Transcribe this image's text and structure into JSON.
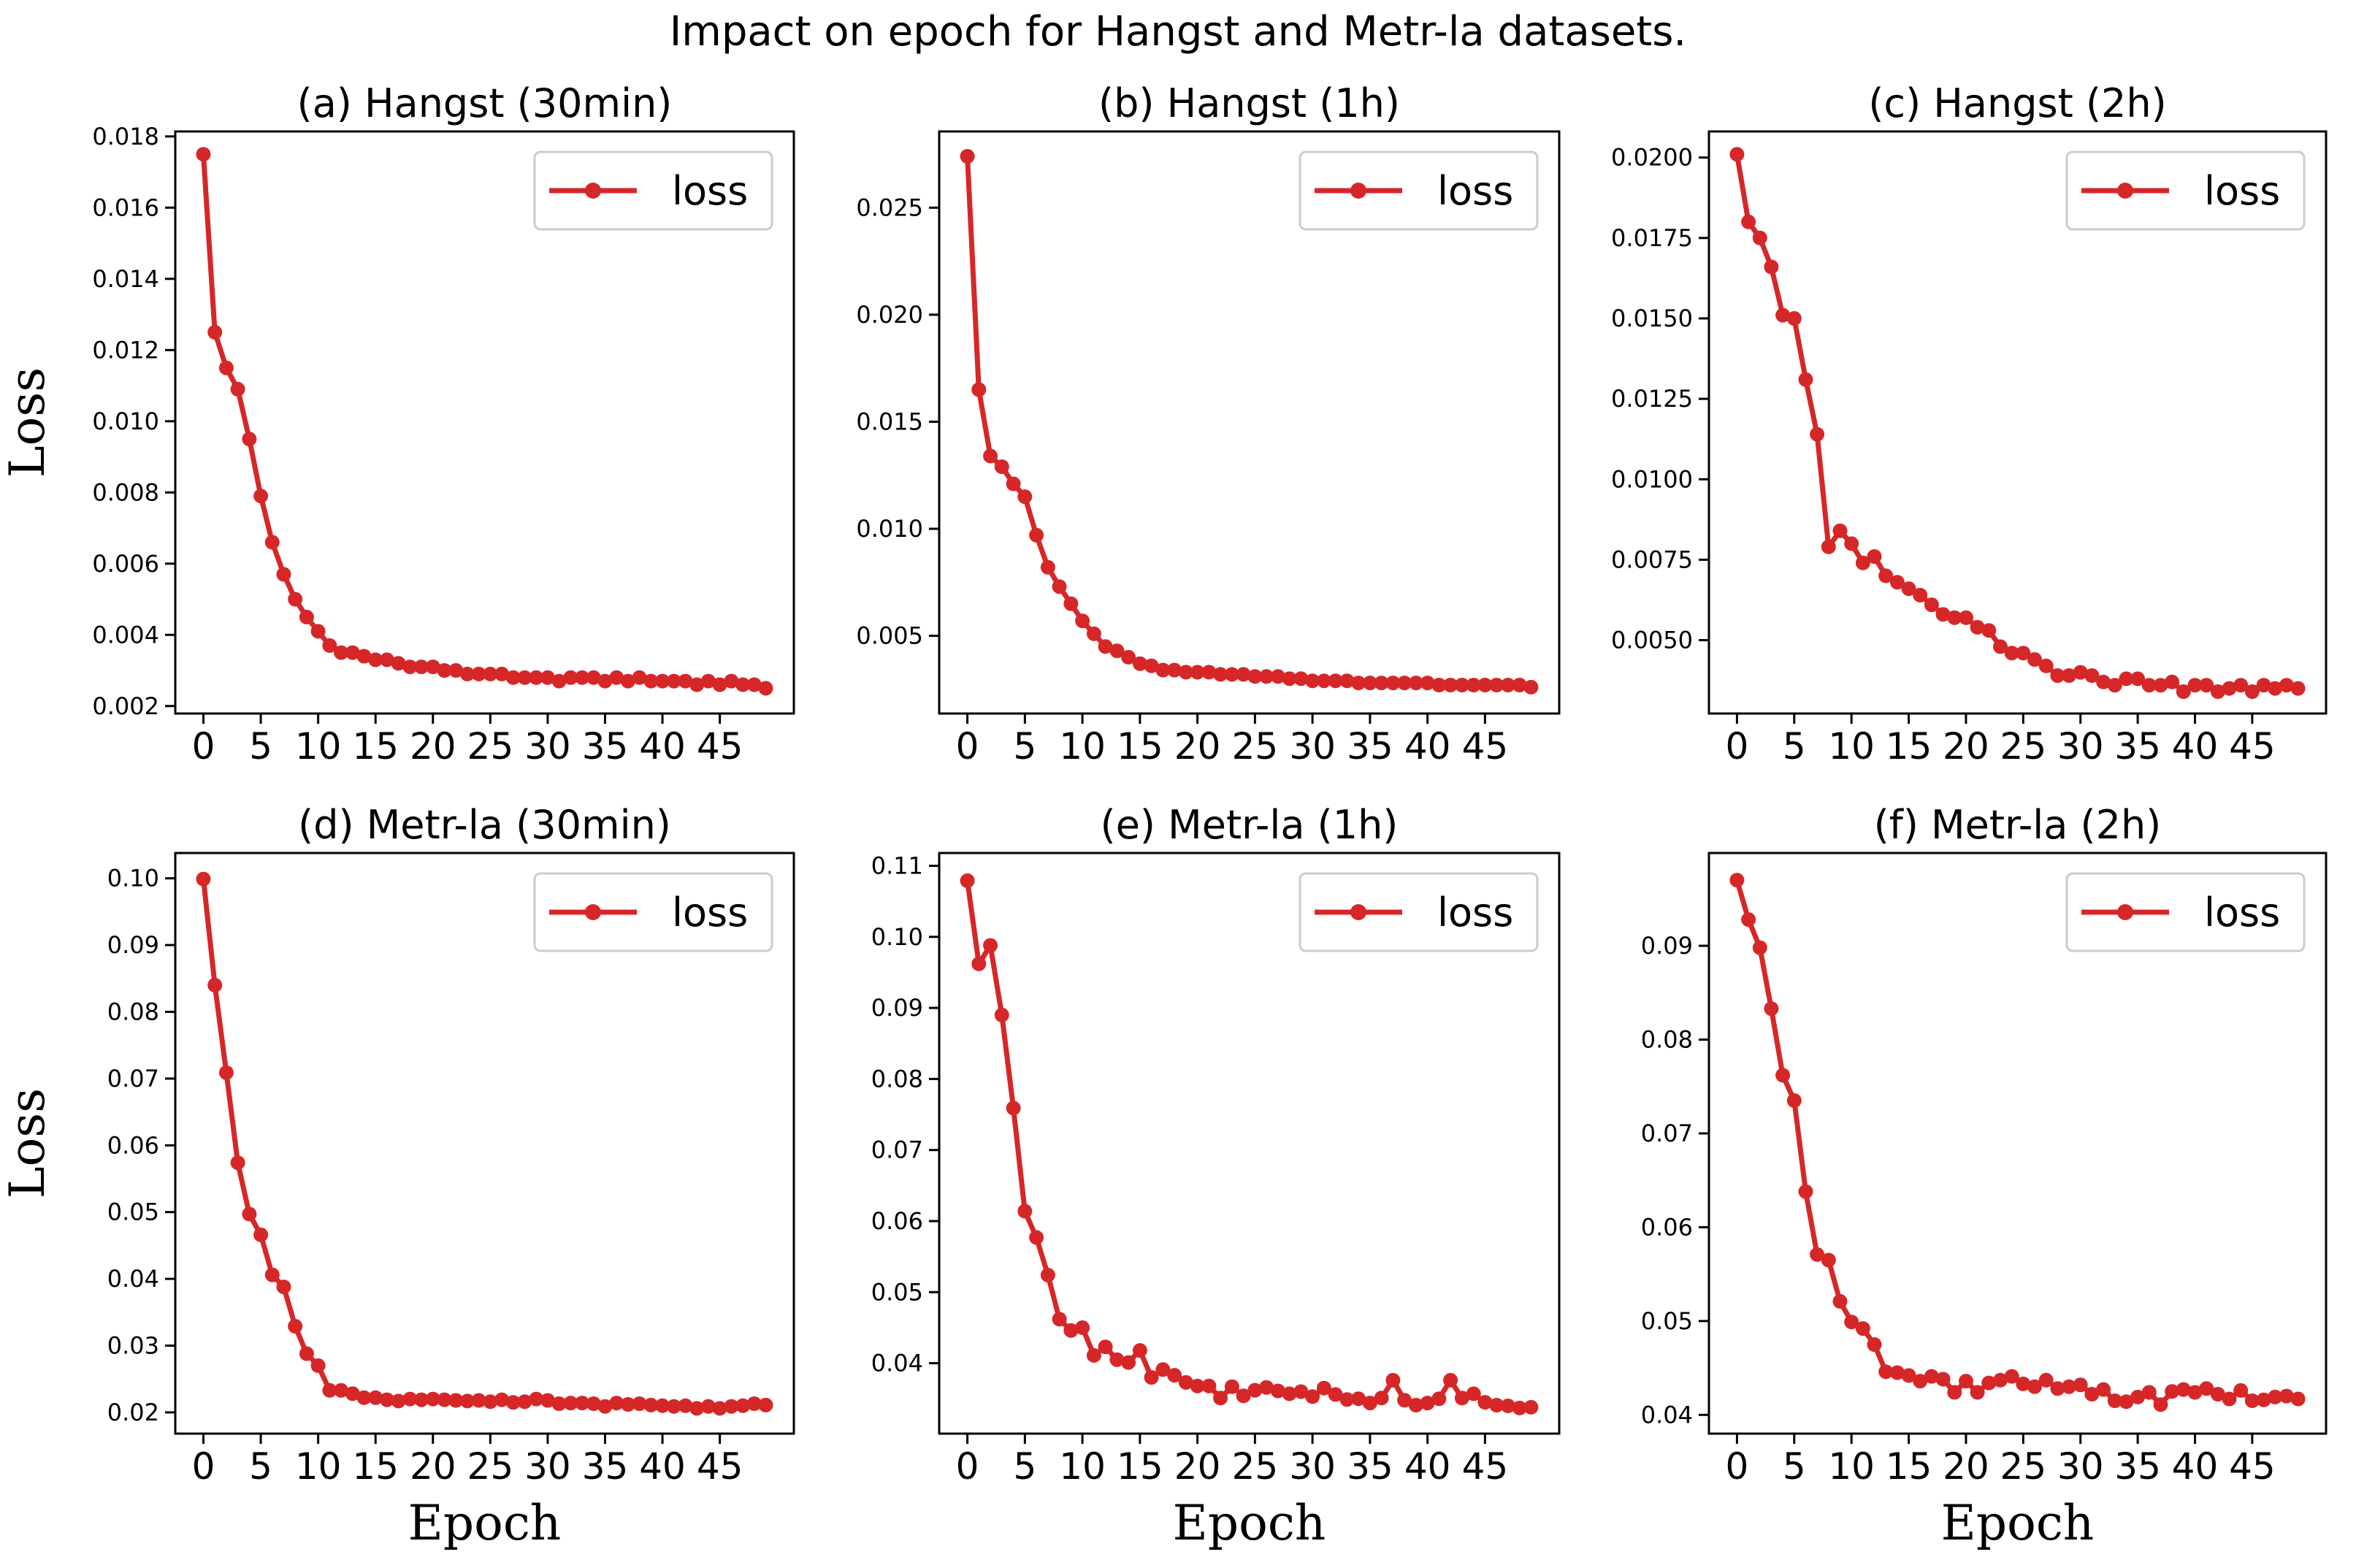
{
  "figure_title": "Impact on epoch for Hangst and Metr-la datasets.",
  "colors": {
    "series": "#d62728",
    "axis": "#000000",
    "legend_border": "#cccccc"
  },
  "chart_data": [
    {
      "type": "line",
      "title": "(a) Hangst (30min)",
      "xlabel": "",
      "ylabel": "Loss",
      "legend": [
        "loss"
      ],
      "legend_position": "top-right",
      "xlim": [
        -2.45,
        51.45
      ],
      "ylim": [
        0.00179,
        0.01814
      ],
      "xticks": [
        0,
        5,
        10,
        15,
        20,
        25,
        30,
        35,
        40,
        45
      ],
      "xtick_labels": [
        "0",
        "5",
        "10",
        "15",
        "20",
        "25",
        "30",
        "35",
        "40",
        "45"
      ],
      "yticks": [
        0.002,
        0.004,
        0.006,
        0.008,
        0.01,
        0.012,
        0.014,
        0.016,
        0.018
      ],
      "ytick_labels": [
        "0.002",
        "0.004",
        "0.006",
        "0.008",
        "0.010",
        "0.012",
        "0.014",
        "0.016",
        "0.018"
      ],
      "series": [
        {
          "name": "loss",
          "x": [
            0,
            1,
            2,
            3,
            4,
            5,
            6,
            7,
            8,
            9,
            10,
            11,
            12,
            13,
            14,
            15,
            16,
            17,
            18,
            19,
            20,
            21,
            22,
            23,
            24,
            25,
            26,
            27,
            28,
            29,
            30,
            31,
            32,
            33,
            34,
            35,
            36,
            37,
            38,
            39,
            40,
            41,
            42,
            43,
            44,
            45,
            46,
            47,
            48,
            49
          ],
          "values": [
            0.0175,
            0.0125,
            0.0115,
            0.0109,
            0.0095,
            0.0079,
            0.0066,
            0.0057,
            0.005,
            0.0045,
            0.0041,
            0.0037,
            0.0035,
            0.0035,
            0.0034,
            0.0033,
            0.0033,
            0.0032,
            0.0031,
            0.0031,
            0.0031,
            0.003,
            0.003,
            0.0029,
            0.0029,
            0.0029,
            0.0029,
            0.0028,
            0.0028,
            0.0028,
            0.0028,
            0.0027,
            0.0028,
            0.0028,
            0.0028,
            0.0027,
            0.0028,
            0.0027,
            0.0028,
            0.0027,
            0.0027,
            0.0027,
            0.0027,
            0.0026,
            0.0027,
            0.0026,
            0.0027,
            0.0026,
            0.0026,
            0.0025
          ]
        }
      ]
    },
    {
      "type": "line",
      "title": "(b) Hangst (1h)",
      "xlabel": "",
      "ylabel": "",
      "legend": [
        "loss"
      ],
      "legend_position": "top-right",
      "xlim": [
        -2.45,
        51.45
      ],
      "ylim": [
        0.00137,
        0.02856
      ],
      "xticks": [
        0,
        5,
        10,
        15,
        20,
        25,
        30,
        35,
        40,
        45
      ],
      "xtick_labels": [
        "0",
        "5",
        "10",
        "15",
        "20",
        "25",
        "30",
        "35",
        "40",
        "45"
      ],
      "yticks": [
        0.005,
        0.01,
        0.015,
        0.02,
        0.025
      ],
      "ytick_labels": [
        "0.005",
        "0.010",
        "0.015",
        "0.020",
        "0.025"
      ],
      "series": [
        {
          "name": "loss",
          "x": [
            0,
            1,
            2,
            3,
            4,
            5,
            6,
            7,
            8,
            9,
            10,
            11,
            12,
            13,
            14,
            15,
            16,
            17,
            18,
            19,
            20,
            21,
            22,
            23,
            24,
            25,
            26,
            27,
            28,
            29,
            30,
            31,
            32,
            33,
            34,
            35,
            36,
            37,
            38,
            39,
            40,
            41,
            42,
            43,
            44,
            45,
            46,
            47,
            48,
            49
          ],
          "values": [
            0.0274,
            0.0165,
            0.0134,
            0.0129,
            0.0121,
            0.0115,
            0.0097,
            0.0082,
            0.0073,
            0.0065,
            0.0057,
            0.0051,
            0.0045,
            0.0043,
            0.004,
            0.0037,
            0.0036,
            0.0034,
            0.0034,
            0.0033,
            0.0033,
            0.0033,
            0.0032,
            0.0032,
            0.0032,
            0.0031,
            0.0031,
            0.0031,
            0.003,
            0.003,
            0.0029,
            0.0029,
            0.0029,
            0.0029,
            0.0028,
            0.0028,
            0.0028,
            0.0028,
            0.0028,
            0.0028,
            0.0028,
            0.0027,
            0.0027,
            0.0027,
            0.0027,
            0.0027,
            0.0027,
            0.0027,
            0.0027,
            0.0026
          ]
        }
      ]
    },
    {
      "type": "line",
      "title": "(c) Hangst (2h)",
      "xlabel": "",
      "ylabel": "",
      "legend": [
        "loss"
      ],
      "legend_position": "top-right",
      "xlim": [
        -2.45,
        51.45
      ],
      "ylim": [
        0.00272,
        0.02081
      ],
      "xticks": [
        0,
        5,
        10,
        15,
        20,
        25,
        30,
        35,
        40,
        45
      ],
      "xtick_labels": [
        "0",
        "5",
        "10",
        "15",
        "20",
        "25",
        "30",
        "35",
        "40",
        "45"
      ],
      "yticks": [
        0.005,
        0.0075,
        0.01,
        0.0125,
        0.015,
        0.0175,
        0.02
      ],
      "ytick_labels": [
        "0.0050",
        "0.0075",
        "0.0100",
        "0.0125",
        "0.0150",
        "0.0175",
        "0.0200"
      ],
      "series": [
        {
          "name": "loss",
          "x": [
            0,
            1,
            2,
            3,
            4,
            5,
            6,
            7,
            8,
            9,
            10,
            11,
            12,
            13,
            14,
            15,
            16,
            17,
            18,
            19,
            20,
            21,
            22,
            23,
            24,
            25,
            26,
            27,
            28,
            29,
            30,
            31,
            32,
            33,
            34,
            35,
            36,
            37,
            38,
            39,
            40,
            41,
            42,
            43,
            44,
            45,
            46,
            47,
            48,
            49
          ],
          "values": [
            0.0201,
            0.018,
            0.0175,
            0.0166,
            0.0151,
            0.015,
            0.0131,
            0.0114,
            0.0079,
            0.0084,
            0.008,
            0.0074,
            0.0076,
            0.007,
            0.0068,
            0.0066,
            0.0064,
            0.0061,
            0.0058,
            0.0057,
            0.0057,
            0.0054,
            0.0053,
            0.0048,
            0.0046,
            0.0046,
            0.0044,
            0.0042,
            0.0039,
            0.0039,
            0.004,
            0.0039,
            0.0037,
            0.0036,
            0.0038,
            0.0038,
            0.0036,
            0.0036,
            0.0037,
            0.0034,
            0.0036,
            0.0036,
            0.0034,
            0.0035,
            0.0036,
            0.0034,
            0.0036,
            0.0035,
            0.0036,
            0.0035
          ]
        }
      ]
    },
    {
      "type": "line",
      "title": "(d) Metr-la (30min)",
      "xlabel": "Epoch",
      "ylabel": "Loss",
      "legend": [
        "loss"
      ],
      "legend_position": "top-right",
      "xlim": [
        -2.45,
        51.45
      ],
      "ylim": [
        0.01682,
        0.10379
      ],
      "xticks": [
        0,
        5,
        10,
        15,
        20,
        25,
        30,
        35,
        40,
        45
      ],
      "xtick_labels": [
        "0",
        "5",
        "10",
        "15",
        "20",
        "25",
        "30",
        "35",
        "40",
        "45"
      ],
      "yticks": [
        0.02,
        0.03,
        0.04,
        0.05,
        0.06,
        0.07,
        0.08,
        0.09,
        0.1
      ],
      "ytick_labels": [
        "0.02",
        "0.03",
        "0.04",
        "0.05",
        "0.06",
        "0.07",
        "0.08",
        "0.09",
        "0.10"
      ],
      "series": [
        {
          "name": "loss",
          "x": [
            0,
            1,
            2,
            3,
            4,
            5,
            6,
            7,
            8,
            9,
            10,
            11,
            12,
            13,
            14,
            15,
            16,
            17,
            18,
            19,
            20,
            21,
            22,
            23,
            24,
            25,
            26,
            27,
            28,
            29,
            30,
            31,
            32,
            33,
            34,
            35,
            36,
            37,
            38,
            39,
            40,
            41,
            42,
            43,
            44,
            45,
            46,
            47,
            48,
            49
          ],
          "values": [
            0.0999,
            0.084,
            0.0709,
            0.0574,
            0.0497,
            0.0466,
            0.0406,
            0.0388,
            0.0329,
            0.0288,
            0.027,
            0.0233,
            0.0233,
            0.0228,
            0.0222,
            0.0222,
            0.0219,
            0.0217,
            0.022,
            0.0219,
            0.022,
            0.0219,
            0.0218,
            0.0217,
            0.0218,
            0.0216,
            0.0219,
            0.0215,
            0.0216,
            0.022,
            0.0218,
            0.0213,
            0.0214,
            0.0214,
            0.0213,
            0.0209,
            0.0214,
            0.0212,
            0.0213,
            0.0211,
            0.021,
            0.0209,
            0.021,
            0.0206,
            0.0209,
            0.0206,
            0.0209,
            0.021,
            0.0213,
            0.0211
          ]
        }
      ]
    },
    {
      "type": "line",
      "title": "(e) Metr-la (1h)",
      "xlabel": "Epoch",
      "ylabel": "",
      "legend": [
        "loss"
      ],
      "legend_position": "top-right",
      "xlim": [
        -2.45,
        51.45
      ],
      "ylim": [
        0.03009,
        0.1118
      ],
      "xticks": [
        0,
        5,
        10,
        15,
        20,
        25,
        30,
        35,
        40,
        45
      ],
      "xtick_labels": [
        "0",
        "5",
        "10",
        "15",
        "20",
        "25",
        "30",
        "35",
        "40",
        "45"
      ],
      "yticks": [
        0.04,
        0.05,
        0.06,
        0.07,
        0.08,
        0.09,
        0.1,
        0.11
      ],
      "ytick_labels": [
        "0.04",
        "0.05",
        "0.06",
        "0.07",
        "0.08",
        "0.09",
        "0.10",
        "0.11"
      ],
      "series": [
        {
          "name": "loss",
          "x": [
            0,
            1,
            2,
            3,
            4,
            5,
            6,
            7,
            8,
            9,
            10,
            11,
            12,
            13,
            14,
            15,
            16,
            17,
            18,
            19,
            20,
            21,
            22,
            23,
            24,
            25,
            26,
            27,
            28,
            29,
            30,
            31,
            32,
            33,
            34,
            35,
            36,
            37,
            38,
            39,
            40,
            41,
            42,
            43,
            44,
            45,
            46,
            47,
            48,
            49
          ],
          "values": [
            0.1079,
            0.0962,
            0.0988,
            0.089,
            0.0759,
            0.0614,
            0.0577,
            0.0524,
            0.0462,
            0.0446,
            0.045,
            0.0411,
            0.0423,
            0.0405,
            0.0401,
            0.0418,
            0.038,
            0.0391,
            0.0383,
            0.0373,
            0.0368,
            0.0368,
            0.0351,
            0.0367,
            0.0354,
            0.0362,
            0.0366,
            0.0361,
            0.0357,
            0.036,
            0.0353,
            0.0365,
            0.0356,
            0.0349,
            0.035,
            0.0344,
            0.0351,
            0.0376,
            0.0348,
            0.0341,
            0.0344,
            0.035,
            0.0376,
            0.0351,
            0.0357,
            0.0345,
            0.0341,
            0.034,
            0.0337,
            0.0338
          ]
        }
      ]
    },
    {
      "type": "line",
      "title": "(f) Metr-la (2h)",
      "xlabel": "Epoch",
      "ylabel": "",
      "legend": [
        "loss"
      ],
      "legend_position": "top-right",
      "xlim": [
        -2.45,
        51.45
      ],
      "ylim": [
        0.038,
        0.09989
      ],
      "xticks": [
        0,
        5,
        10,
        15,
        20,
        25,
        30,
        35,
        40,
        45
      ],
      "xtick_labels": [
        "0",
        "5",
        "10",
        "15",
        "20",
        "25",
        "30",
        "35",
        "40",
        "45"
      ],
      "yticks": [
        0.04,
        0.05,
        0.06,
        0.07,
        0.08,
        0.09
      ],
      "ytick_labels": [
        "0.04",
        "0.05",
        "0.06",
        "0.07",
        "0.08",
        "0.09"
      ],
      "series": [
        {
          "name": "loss",
          "x": [
            0,
            1,
            2,
            3,
            4,
            5,
            6,
            7,
            8,
            9,
            10,
            11,
            12,
            13,
            14,
            15,
            16,
            17,
            18,
            19,
            20,
            21,
            22,
            23,
            24,
            25,
            26,
            27,
            28,
            29,
            30,
            31,
            32,
            33,
            34,
            35,
            36,
            37,
            38,
            39,
            40,
            41,
            42,
            43,
            44,
            45,
            46,
            47,
            48,
            49
          ],
          "values": [
            0.097,
            0.0928,
            0.0898,
            0.0833,
            0.0762,
            0.0735,
            0.0638,
            0.0571,
            0.0565,
            0.0521,
            0.0499,
            0.0492,
            0.0475,
            0.0446,
            0.0445,
            0.0442,
            0.0436,
            0.0441,
            0.0438,
            0.0424,
            0.0436,
            0.0424,
            0.0434,
            0.0437,
            0.0441,
            0.0433,
            0.043,
            0.0437,
            0.0428,
            0.043,
            0.0432,
            0.0422,
            0.0427,
            0.0415,
            0.0414,
            0.0419,
            0.0424,
            0.0411,
            0.0425,
            0.0427,
            0.0424,
            0.0428,
            0.0422,
            0.0417,
            0.0426,
            0.0415,
            0.0416,
            0.0419,
            0.042,
            0.0417
          ]
        }
      ]
    }
  ]
}
